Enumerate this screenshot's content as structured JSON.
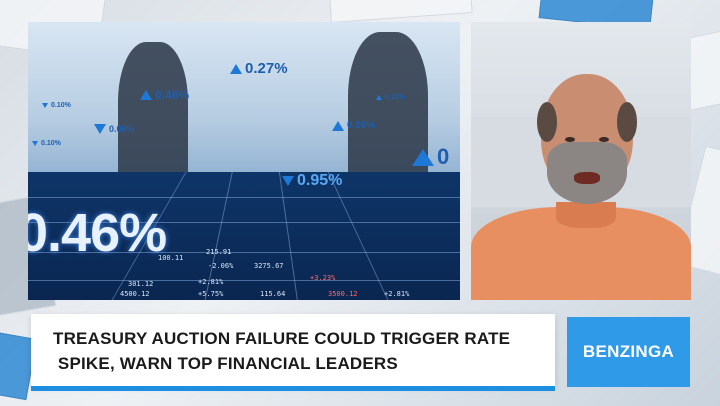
{
  "market_panel": {
    "big_percent": "0.46%",
    "tickers": [
      {
        "dir": "up",
        "text": "0.27%"
      },
      {
        "dir": "up",
        "text": "0.46%"
      },
      {
        "dir": "down",
        "text": "0.08%"
      },
      {
        "dir": "down",
        "text": "0.10%"
      },
      {
        "dir": "down",
        "text": "0.10%"
      },
      {
        "dir": "up",
        "text": "0.22%"
      },
      {
        "dir": "up",
        "text": "0.06%"
      },
      {
        "dir": "up",
        "text": "0"
      },
      {
        "dir": "down",
        "text": "0.95%"
      }
    ],
    "board_numbers": [
      "301.12",
      "4500.12",
      "+5.75%",
      "115.64",
      "3275.67",
      "+2.81%",
      "+3.23%",
      "3500.12",
      "+2.81%",
      "-2.06%",
      "100.11",
      "215.91"
    ]
  },
  "headline": {
    "line1": "TREASURY AUCTION FAILURE COULD TRIGGER RATE",
    "line2": " SPIKE, WARN TOP FINANCIAL LEADERS"
  },
  "brand": {
    "name": "BENZINGA"
  },
  "colors": {
    "accent_blue": "#2e9ae8",
    "stripe_blue": "#1e8ee0",
    "ticker_blue": "#1e78d6"
  }
}
